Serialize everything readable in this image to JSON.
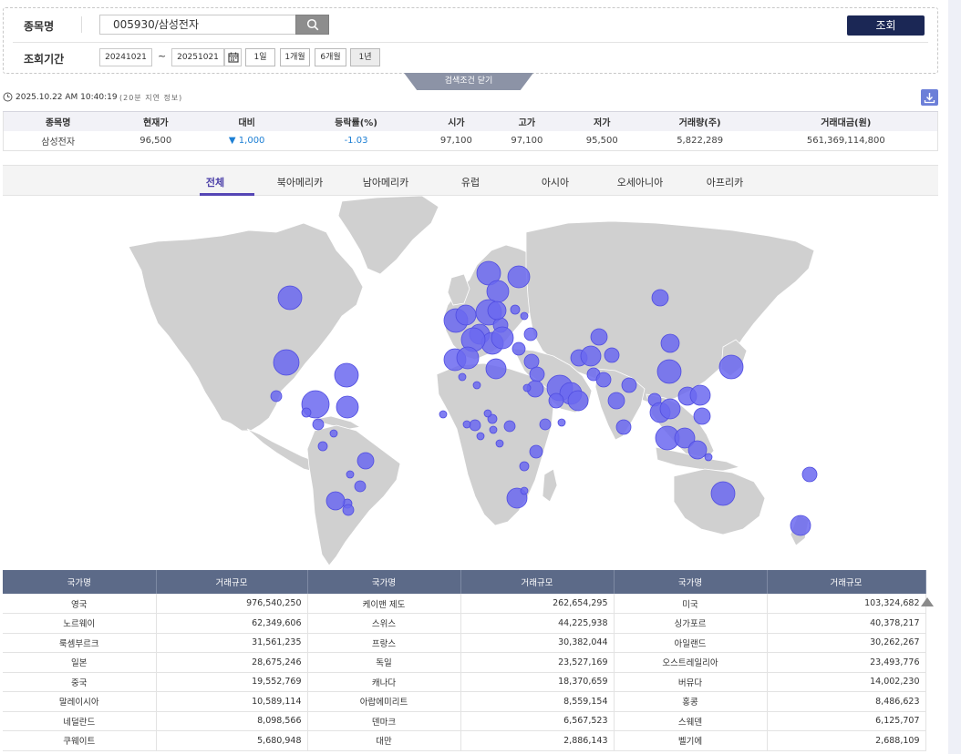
{
  "search": {
    "stock_label": "종목명",
    "stock_value": "005930/삼성전자",
    "period_label": "조회기간",
    "start_date": "20241021",
    "tilde": "~",
    "end_date": "20251021",
    "periods": [
      "1일",
      "1개월",
      "6개월",
      "1년"
    ],
    "query_label": "조회",
    "toggle_label": "검색조건 닫기"
  },
  "info": {
    "timestamp": "2025.10.22 AM 10:40:19",
    "delay_note": "(20분 지연 정보)"
  },
  "quote": {
    "headers": [
      "종목명",
      "현재가",
      "대비",
      "등락률(%)",
      "시가",
      "고가",
      "저가",
      "거래량(주)",
      "거래대금(원)"
    ],
    "row": {
      "name": "삼성전자",
      "price": "96,500",
      "change": "▼ 1,000",
      "rate": "-1.03",
      "open": "97,100",
      "high": "97,100",
      "low": "95,500",
      "volume": "5,822,289",
      "amount": "561,369,114,800"
    }
  },
  "regions": {
    "tabs": [
      "전체",
      "북아메리카",
      "남아메리카",
      "유럽",
      "아시아",
      "오세아니아",
      "아프리카"
    ],
    "active": "전체"
  },
  "map": {
    "land_color": "#d0d0d0",
    "bubble_color": "#6b68f0"
  },
  "countries": {
    "headers": [
      "국가명",
      "거래규모",
      "국가명",
      "거래규모",
      "국가명",
      "거래규모"
    ],
    "rows": [
      [
        "영국",
        "976,540,250",
        "케이맨 제도",
        "262,654,295",
        "미국",
        "103,324,682"
      ],
      [
        "노르웨이",
        "62,349,606",
        "스위스",
        "44,225,938",
        "싱가포르",
        "40,378,217"
      ],
      [
        "룩셈부르크",
        "31,561,235",
        "프랑스",
        "30,382,044",
        "아일랜드",
        "30,262,267"
      ],
      [
        "일본",
        "28,675,246",
        "독일",
        "23,527,169",
        "오스트레일리아",
        "23,493,776"
      ],
      [
        "중국",
        "19,552,769",
        "캐나다",
        "18,370,659",
        "버뮤다",
        "14,002,230"
      ],
      [
        "말레이시아",
        "10,589,114",
        "아랍에미리트",
        "8,559,154",
        "홍콩",
        "8,486,623"
      ],
      [
        "네덜란드",
        "8,098,566",
        "덴마크",
        "6,567,523",
        "스웨덴",
        "6,125,707"
      ],
      [
        "쿠웨이트",
        "5,680,948",
        "대만",
        "2,886,143",
        "벨기에",
        "2,688,109"
      ]
    ]
  }
}
